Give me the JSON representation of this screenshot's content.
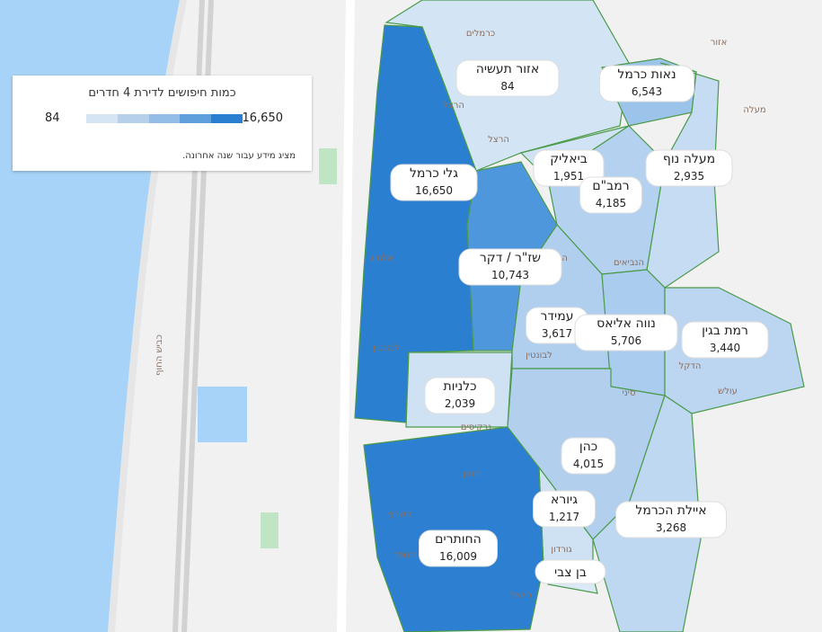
{
  "legend": {
    "title": "כמות חיפושים לדירת 4 חדרים",
    "min": "84",
    "max": "16,650",
    "note": "מציג מידע עבור שנה אחרונה."
  },
  "neighborhoods": [
    {
      "name": "אזור תעשיה",
      "value": "84"
    },
    {
      "name": "נאות כרמל",
      "value": "6,543"
    },
    {
      "name": "ביאליק",
      "value": "1,951"
    },
    {
      "name": "מעלה נוף",
      "value": "2,935"
    },
    {
      "name": "גלי כרמל",
      "value": "16,650"
    },
    {
      "name": "רמב\"ם",
      "value": "4,185"
    },
    {
      "name": "שז\"ר / דקר",
      "value": "10,743"
    },
    {
      "name": "עמידר",
      "value": "3,617"
    },
    {
      "name": "נווה אליאס",
      "value": "5,706"
    },
    {
      "name": "רמת בגין",
      "value": "3,440"
    },
    {
      "name": "כלניות",
      "value": "2,039"
    },
    {
      "name": "כהן",
      "value": "4,015"
    },
    {
      "name": "גיורא",
      "value": "1,217"
    },
    {
      "name": "איילת הכרמל",
      "value": "3,268"
    },
    {
      "name": "החותרים",
      "value": "16,009"
    },
    {
      "name": "בן צבי",
      "value": null
    }
  ],
  "streets": [
    "כרמלים",
    "הרצל",
    "הרצל",
    "הרצל",
    "אלמוג",
    "השחף",
    "לבונטין",
    "לבונטין",
    "הדקל",
    "הנופר",
    "הגפן",
    "ריזאל",
    "גורדון",
    "סיני",
    "נרקיסים",
    "הנביאים",
    "כביש החוף",
    "אזור",
    "מעלה",
    "עולש"
  ]
}
